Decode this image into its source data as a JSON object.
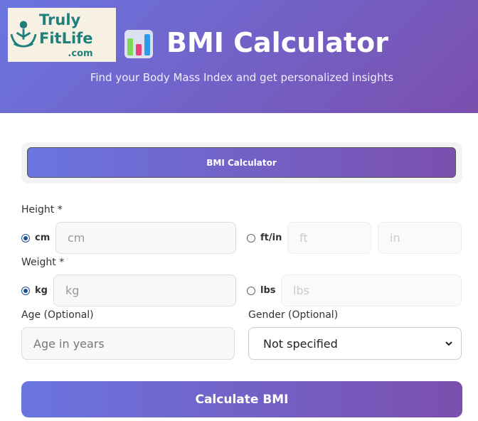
{
  "header": {
    "logo_text": "TrulyFitLife.com",
    "logo_line1": "Truly",
    "logo_line2": "FitLife",
    "logo_line3": ".com",
    "title": "BMI Calculator",
    "subtitle": "Find your Body Mass Index and get personalized insights"
  },
  "tabs": [
    {
      "label": "BMI Calculator",
      "active": true
    }
  ],
  "form": {
    "height_label": "Height *",
    "height_units": [
      {
        "label": "cm",
        "selected": true
      },
      {
        "label": "ft/in",
        "selected": false
      }
    ],
    "height_placeholders": {
      "cm": "cm",
      "ft": "ft",
      "in": "in"
    },
    "weight_label": "Weight *",
    "weight_units": [
      {
        "label": "kg",
        "selected": true
      },
      {
        "label": "lbs",
        "selected": false
      }
    ],
    "weight_placeholders": {
      "kg": "kg",
      "lbs": "lbs"
    },
    "age_label": "Age (Optional)",
    "age_placeholder": "Age in years",
    "gender_label": "Gender (Optional)",
    "gender_value": "Not specified",
    "submit_label": "Calculate BMI"
  },
  "colors": {
    "gradient_start": "#6a75e0",
    "gradient_end": "#7b4fae",
    "radio": "#1a4f96",
    "logo": "#1f7f7c"
  }
}
